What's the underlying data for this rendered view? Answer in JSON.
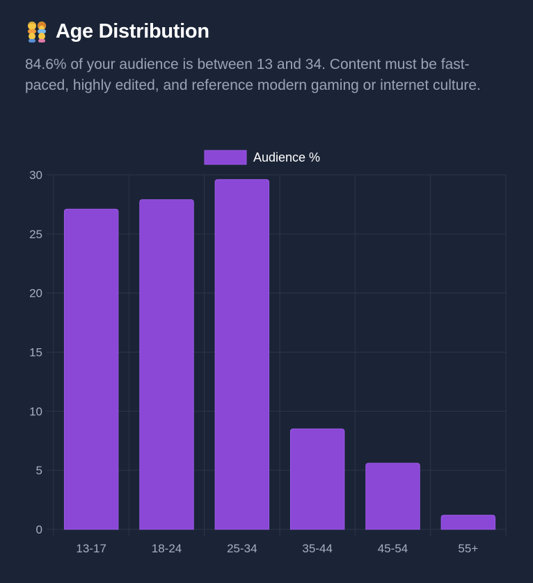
{
  "header": {
    "title": "Age Distribution",
    "title_icon": "family-emoji-icon",
    "description": "84.6% of your audience is between 13 and 34. Content must be fast-paced, highly edited, and reference modern gaming or internet culture."
  },
  "colors": {
    "background": "#1b2436",
    "bar_fill": "#8b48d6",
    "bar_stroke": "#9b59e8",
    "grid": "#2c3648",
    "tick_text": "#a7b0c0",
    "legend_text": "#ffffff"
  },
  "chart_data": {
    "type": "bar",
    "categories": [
      "13-17",
      "18-24",
      "25-34",
      "35-44",
      "45-54",
      "55+"
    ],
    "series": [
      {
        "name": "Audience %",
        "values": [
          27.1,
          27.9,
          29.6,
          8.5,
          5.6,
          1.2
        ]
      }
    ],
    "y_ticks": [
      "0",
      "5",
      "10",
      "15",
      "20",
      "25",
      "30"
    ],
    "ylim": [
      0,
      30
    ],
    "grid": true,
    "legend_position": "top-center"
  }
}
